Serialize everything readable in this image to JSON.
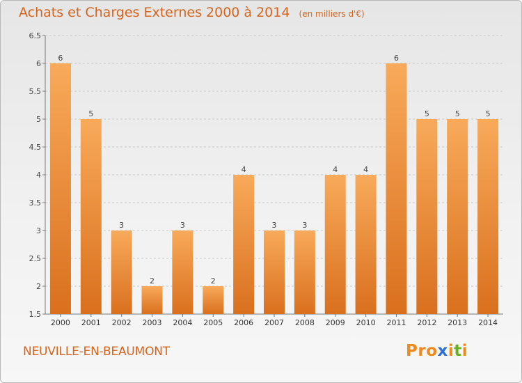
{
  "header": {
    "title": "Achats et Charges Externes 2000 à 2014",
    "subtitle": "(en milliers d'€)"
  },
  "footer": {
    "location": "NEUVILLE-EN-BEAUMONT",
    "logo_text": "Proxiti"
  },
  "colors": {
    "bar_light": "#f8aa5a",
    "bar_dark": "#d9701e",
    "title": "#d7641c",
    "logo": [
      "#f08a1c",
      "#f08a1c",
      "#f08a1c",
      "#2f6fd6",
      "#f08a1c",
      "#6ab023",
      "#f08a1c"
    ]
  },
  "chart_data": {
    "type": "bar",
    "title": "Achats et Charges Externes 2000 à 2014",
    "xlabel": "",
    "ylabel": "",
    "categories": [
      "2000",
      "2001",
      "2002",
      "2003",
      "2004",
      "2005",
      "2006",
      "2007",
      "2008",
      "2009",
      "2010",
      "2011",
      "2012",
      "2013",
      "2014"
    ],
    "values": [
      6,
      5,
      3,
      2,
      3,
      2,
      4,
      3,
      3,
      4,
      4,
      6,
      5,
      5,
      5
    ],
    "data_labels": [
      "6",
      "5",
      "3",
      "2",
      "3",
      "2",
      "4",
      "3",
      "3",
      "4",
      "4",
      "6",
      "5",
      "5",
      "5"
    ],
    "ylim": [
      1.5,
      6.5
    ],
    "yticks": [
      "1.5",
      "2",
      "2.5",
      "3",
      "3.5",
      "4",
      "4.5",
      "5",
      "5.5",
      "6",
      "6.5"
    ],
    "grid": true,
    "legend": "none"
  }
}
